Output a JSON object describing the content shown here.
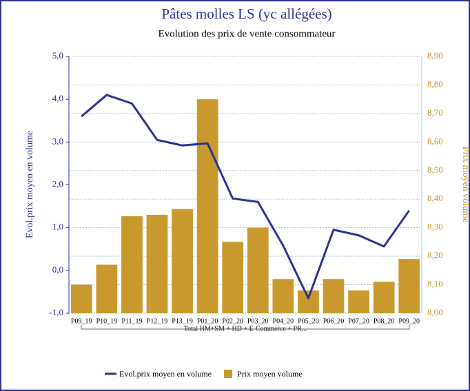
{
  "chart_data": {
    "type": "combo",
    "title": "Pâtes molles LS (yc allégées)",
    "subtitle": "Evolution des prix de vente consommateur",
    "y_label": "Evol.prix moyen en volume",
    "y2_label": "Prix moyen volume",
    "group_label": "Total HM+SM + HD + E-Commerce + PR...",
    "categories": [
      "P09_19",
      "P10_19",
      "P11_19",
      "P12_19",
      "P13_19",
      "P01_20",
      "P02_20",
      "P03_20",
      "P04_20",
      "P05_20",
      "P06_20",
      "P07_20",
      "P08_20",
      "P09_20"
    ],
    "series": [
      {
        "name": "Evol.prix moyen en volume",
        "type": "line",
        "color": "#2e3192",
        "axis": "y",
        "values": [
          3.6,
          4.1,
          3.9,
          3.05,
          2.92,
          2.97,
          1.68,
          1.6,
          0.58,
          -0.65,
          0.95,
          0.82,
          0.56,
          1.4
        ]
      },
      {
        "name": "Prix moyen volume",
        "type": "bar",
        "color": "#c9992e",
        "axis": "y2",
        "values": [
          8.1,
          8.17,
          8.34,
          8.345,
          8.365,
          8.75,
          8.25,
          8.3,
          8.12,
          8.08,
          8.12,
          8.08,
          8.11,
          8.19
        ]
      }
    ],
    "ylim": [
      -1,
      5
    ],
    "yticks": [
      {
        "value": -1,
        "label": "-1,0"
      },
      {
        "value": 0,
        "label": "0,0"
      },
      {
        "value": 1,
        "label": "1,0"
      },
      {
        "value": 2,
        "label": "2,0"
      },
      {
        "value": 3,
        "label": "3,0"
      },
      {
        "value": 4,
        "label": "4,0"
      },
      {
        "value": 5,
        "label": "5,0"
      }
    ],
    "y2lim": [
      8,
      8.9
    ],
    "y2ticks": [
      {
        "value": 8,
        "label": "8,00"
      },
      {
        "value": 8.1,
        "label": "8,10"
      },
      {
        "value": 8.2,
        "label": "8,20"
      },
      {
        "value": 8.3,
        "label": "8,30"
      },
      {
        "value": 8.4,
        "label": "8,40"
      },
      {
        "value": 8.5,
        "label": "8,50"
      },
      {
        "value": 8.6,
        "label": "8,60"
      },
      {
        "value": 8.7,
        "label": "8,70"
      },
      {
        "value": 8.8,
        "label": "8,80"
      },
      {
        "value": 8.9,
        "label": "8,90"
      }
    ],
    "grid": true,
    "legend": "bottom"
  }
}
